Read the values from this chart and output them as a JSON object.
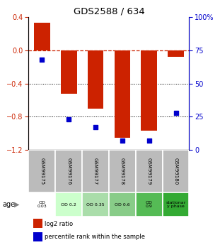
{
  "title": "GDS2588 / 634",
  "samples": [
    "GSM99175",
    "GSM99176",
    "GSM99177",
    "GSM99178",
    "GSM99179",
    "GSM99180"
  ],
  "log2_ratio": [
    0.33,
    -0.52,
    -0.7,
    -1.05,
    -0.97,
    -0.08
  ],
  "percentile_rank": [
    68,
    23,
    17,
    7,
    7,
    28
  ],
  "ylim_left": [
    -1.2,
    0.4
  ],
  "ylim_right": [
    0,
    100
  ],
  "bar_color": "#cc2200",
  "dot_color": "#0000cc",
  "y_ticks_left": [
    0.4,
    0.0,
    -0.4,
    -0.8,
    -1.2
  ],
  "y_ticks_right": [
    100,
    75,
    50,
    25,
    0
  ],
  "hline_color": "#cc2200",
  "dotted_lines": [
    -0.4,
    -0.8
  ],
  "age_labels": [
    "OD\n0.03",
    "OD 0.2",
    "OD 0.35",
    "OD 0.6",
    "OD\n0.9",
    "stationar\ny phase"
  ],
  "age_bg_colors": [
    "#ffffff",
    "#ccffcc",
    "#aaddaa",
    "#88cc88",
    "#55bb55",
    "#33aa33"
  ],
  "sample_bg_color": "#bbbbbb",
  "age_row_label": "age"
}
